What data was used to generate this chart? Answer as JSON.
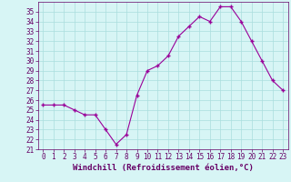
{
  "x": [
    0,
    1,
    2,
    3,
    4,
    5,
    6,
    7,
    8,
    9,
    10,
    11,
    12,
    13,
    14,
    15,
    16,
    17,
    18,
    19,
    20,
    21,
    22,
    23
  ],
  "y": [
    25.5,
    25.5,
    25.5,
    25.0,
    24.5,
    24.5,
    23.0,
    21.5,
    22.5,
    26.5,
    29.0,
    29.5,
    30.5,
    32.5,
    33.5,
    34.5,
    34.0,
    35.5,
    35.5,
    34.0,
    32.0,
    30.0,
    28.0,
    27.0
  ],
  "line_color": "#990099",
  "marker": "+",
  "marker_size": 3,
  "bg_color": "#d7f5f5",
  "grid_color": "#aadddd",
  "xlabel": "Windchill (Refroidissement éolien,°C)",
  "xlim": [
    -0.5,
    23.5
  ],
  "ylim": [
    21,
    36
  ],
  "yticks": [
    21,
    22,
    23,
    24,
    25,
    26,
    27,
    28,
    29,
    30,
    31,
    32,
    33,
    34,
    35
  ],
  "xticks": [
    0,
    1,
    2,
    3,
    4,
    5,
    6,
    7,
    8,
    9,
    10,
    11,
    12,
    13,
    14,
    15,
    16,
    17,
    18,
    19,
    20,
    21,
    22,
    23
  ],
  "xlabel_fontsize": 6.5,
  "tick_fontsize": 5.5,
  "axis_color": "#660066",
  "linewidth": 0.8,
  "marker_edge_width": 1.0
}
